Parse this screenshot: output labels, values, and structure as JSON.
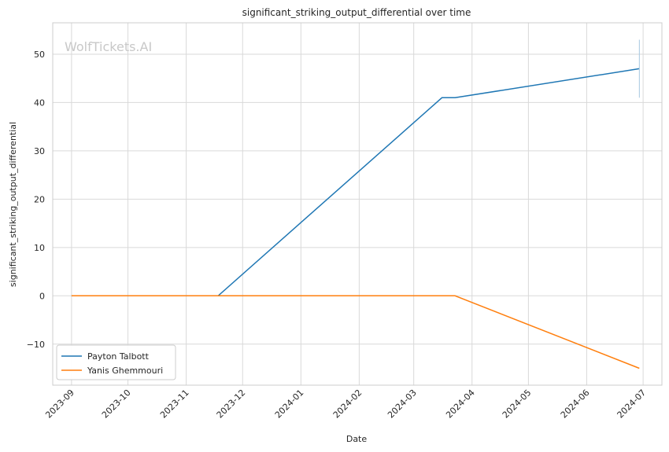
{
  "chart_data": {
    "type": "line",
    "title": "significant_striking_output_differential over time",
    "xlabel": "Date",
    "ylabel": "significant_striking_output_differential",
    "watermark": "WolfTickets.AI",
    "x_ticks": [
      "2023-09",
      "2023-10",
      "2023-11",
      "2023-12",
      "2024-01",
      "2024-02",
      "2024-03",
      "2024-04",
      "2024-05",
      "2024-06",
      "2024-07"
    ],
    "y_ticks": [
      50,
      40,
      30,
      20,
      10,
      0,
      -10
    ],
    "y_tick_labels": [
      "50",
      "40",
      "30",
      "20",
      "10",
      "0",
      "−10"
    ],
    "xlim": [
      "2023-08-22",
      "2024-07-11"
    ],
    "ylim": [
      -18.5,
      56.5
    ],
    "grid": true,
    "legend_position": "bottom-left",
    "series": [
      {
        "name": "Payton Talbott",
        "color": "#1f77b4",
        "points": [
          {
            "x": "2023-09-01",
            "y": 0
          },
          {
            "x": "2023-11-18",
            "y": 0
          },
          {
            "x": "2024-03-16",
            "y": 41
          },
          {
            "x": "2024-03-23",
            "y": 41
          },
          {
            "x": "2024-06-29",
            "y": 47
          }
        ]
      },
      {
        "name": "Yanis Ghemmouri",
        "color": "#ff7f0e",
        "points": [
          {
            "x": "2023-09-01",
            "y": 0
          },
          {
            "x": "2024-03-23",
            "y": 0
          },
          {
            "x": "2024-06-29",
            "y": -15
          }
        ]
      }
    ],
    "error_bar": {
      "x": "2024-06-29",
      "y_low": 41,
      "y_high": 53,
      "color": "#a6c8e0"
    }
  }
}
